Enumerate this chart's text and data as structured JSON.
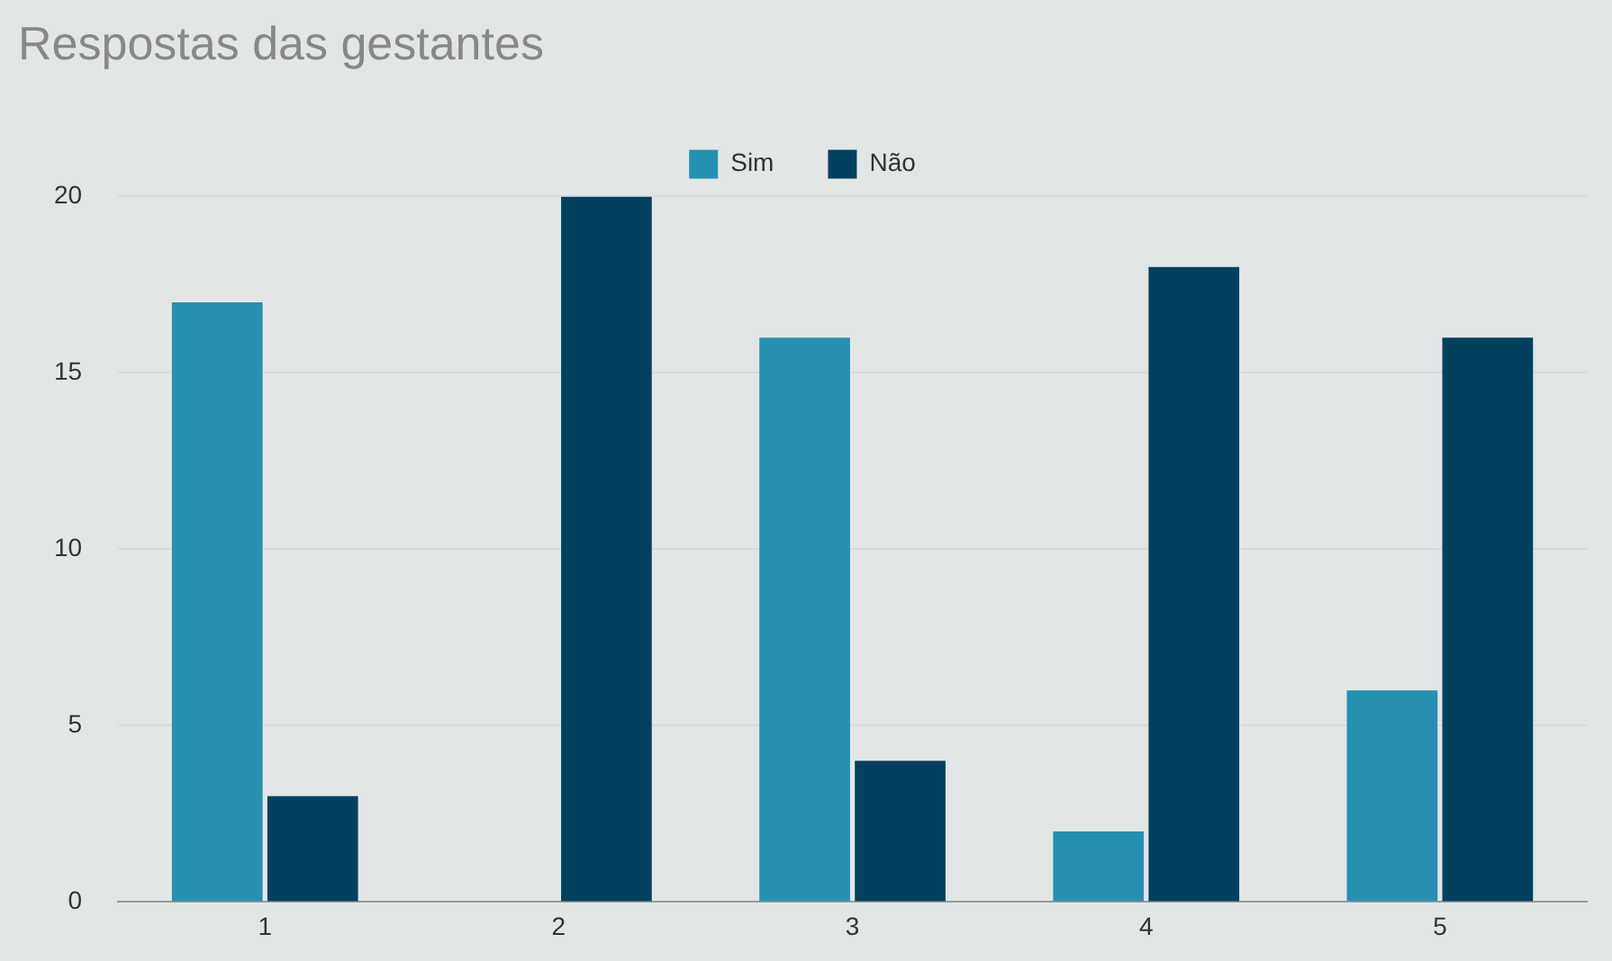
{
  "chart_data": {
    "type": "bar",
    "title": "Respostas das gestantes",
    "categories": [
      "1",
      "2",
      "3",
      "4",
      "5"
    ],
    "series": [
      {
        "name": "Sim",
        "color": "#2590b0",
        "values": [
          17,
          0,
          16,
          2,
          6
        ]
      },
      {
        "name": "Não",
        "color": "#02405e",
        "values": [
          3,
          20,
          4,
          18,
          16
        ]
      }
    ],
    "ylim": [
      0,
      20
    ],
    "yticks": [
      0,
      5,
      10,
      15,
      20
    ],
    "grid": "y",
    "legend": "top"
  }
}
